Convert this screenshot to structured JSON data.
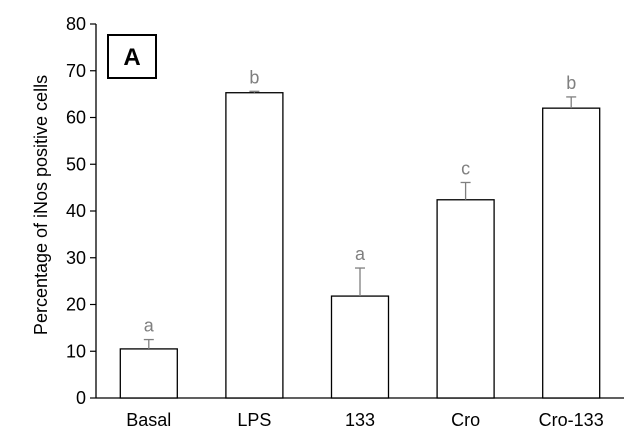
{
  "panel_label": "A",
  "colors": {
    "bar_fill": "#ffffff",
    "bar_stroke": "#000000",
    "error_bar": "#7f7f7f",
    "significance_text": "#7f7f7f",
    "axis": "#000000"
  },
  "chart_data": {
    "type": "bar",
    "title": "",
    "xlabel": "",
    "ylabel": "Percentage of iNos positive cells",
    "ylim": [
      0,
      80
    ],
    "yticks": [
      0,
      10,
      20,
      30,
      40,
      50,
      60,
      70,
      80
    ],
    "grid": false,
    "legend": "none",
    "categories": [
      "Basal",
      "LPS",
      "133",
      "Cro",
      "Cro-133"
    ],
    "values": [
      10.5,
      65.3,
      21.8,
      42.4,
      62.0
    ],
    "errors": [
      2.0,
      0.3,
      6.0,
      3.7,
      2.4
    ],
    "significance_labels": [
      "a",
      "b",
      "a",
      "c",
      "b"
    ]
  }
}
